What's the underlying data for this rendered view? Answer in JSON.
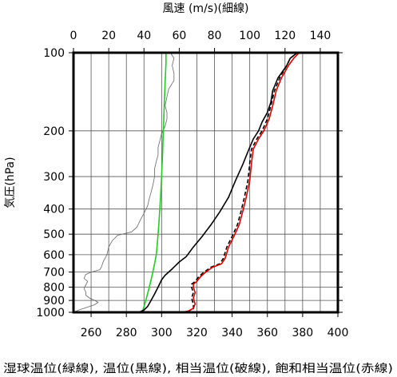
{
  "chart_data": {
    "type": "line",
    "title": "",
    "top_axis": {
      "label": "風速 (m/s)(細線)",
      "range": [
        0,
        150
      ],
      "ticks": [
        0,
        20,
        40,
        60,
        80,
        100,
        120,
        140
      ]
    },
    "x_axis": {
      "label": "湿球温位(緑線), 温位(黒線), 相当温位(破線), 飽和相当温位(赤線)",
      "range": [
        250,
        400
      ],
      "ticks": [
        260,
        280,
        300,
        320,
        340,
        360,
        380,
        400
      ]
    },
    "y_axis": {
      "label": "気圧(hPa)",
      "scale": "log",
      "range": [
        1000,
        100
      ],
      "ticks": [
        100,
        200,
        300,
        400,
        500,
        600,
        700,
        800,
        900,
        1000
      ]
    },
    "grid": true,
    "series": [
      {
        "name": "風速",
        "color": "#666666",
        "style": "thin",
        "axis": "top",
        "points": [
          [
            0,
            1000
          ],
          [
            3,
            980
          ],
          [
            8,
            955
          ],
          [
            12,
            935
          ],
          [
            14,
            915
          ],
          [
            12,
            900
          ],
          [
            9,
            880
          ],
          [
            7,
            860
          ],
          [
            7,
            835
          ],
          [
            6,
            810
          ],
          [
            7,
            785
          ],
          [
            8,
            760
          ],
          [
            6,
            740
          ],
          [
            7,
            715
          ],
          [
            10,
            700
          ],
          [
            15,
            685
          ],
          [
            16,
            665
          ],
          [
            17,
            635
          ],
          [
            19,
            600
          ],
          [
            20,
            560
          ],
          [
            22,
            530
          ],
          [
            25,
            505
          ],
          [
            33,
            490
          ],
          [
            36,
            470
          ],
          [
            38,
            440
          ],
          [
            40,
            415
          ],
          [
            42,
            390
          ],
          [
            43,
            365
          ],
          [
            44,
            345
          ],
          [
            45,
            325
          ],
          [
            46,
            300
          ],
          [
            46,
            280
          ],
          [
            47,
            262
          ],
          [
            48,
            248
          ],
          [
            48,
            232
          ],
          [
            49,
            218
          ],
          [
            50,
            205
          ],
          [
            52,
            192
          ],
          [
            53,
            180
          ],
          [
            53,
            170
          ],
          [
            52,
            160
          ],
          [
            53,
            148
          ],
          [
            54,
            138
          ],
          [
            57,
            128
          ],
          [
            57,
            120
          ],
          [
            56,
            112
          ],
          [
            57,
            105
          ],
          [
            55,
            100
          ]
        ]
      },
      {
        "name": "湿球温位",
        "color": "#22cc22",
        "style": "solid",
        "axis": "bottom",
        "points": [
          [
            289,
            1000
          ],
          [
            290,
            950
          ],
          [
            291,
            900
          ],
          [
            292,
            850
          ],
          [
            293,
            800
          ],
          [
            294,
            750
          ],
          [
            295,
            700
          ],
          [
            296,
            650
          ],
          [
            297,
            600
          ],
          [
            297.5,
            550
          ],
          [
            298,
            500
          ],
          [
            298.5,
            450
          ],
          [
            299,
            400
          ],
          [
            299.5,
            350
          ],
          [
            300,
            300
          ],
          [
            300.5,
            250
          ],
          [
            301,
            200
          ],
          [
            301.5,
            160
          ],
          [
            302,
            130
          ],
          [
            302.5,
            110
          ],
          [
            302.5,
            100
          ]
        ]
      },
      {
        "name": "温位",
        "color": "#000000",
        "style": "solid",
        "axis": "bottom",
        "points": [
          [
            287,
            1000
          ],
          [
            290,
            980
          ],
          [
            292,
            950
          ],
          [
            294,
            900
          ],
          [
            296,
            850
          ],
          [
            298,
            800
          ],
          [
            300,
            750
          ],
          [
            302,
            720
          ],
          [
            306,
            680
          ],
          [
            310,
            640
          ],
          [
            314,
            610
          ],
          [
            318,
            560
          ],
          [
            323,
            510
          ],
          [
            328,
            460
          ],
          [
            333,
            410
          ],
          [
            338,
            360
          ],
          [
            342,
            310
          ],
          [
            346,
            270
          ],
          [
            349,
            240
          ],
          [
            352,
            215
          ],
          [
            355,
            200
          ],
          [
            357,
            185
          ],
          [
            360,
            170
          ],
          [
            362,
            155
          ],
          [
            363,
            140
          ],
          [
            366,
            125
          ],
          [
            371,
            112
          ],
          [
            373,
            105
          ],
          [
            377,
            100
          ]
        ]
      },
      {
        "name": "相当温位",
        "color": "#000000",
        "style": "dashed",
        "axis": "bottom",
        "points": [
          [
            311,
            1000
          ],
          [
            315,
            990
          ],
          [
            318,
            970
          ],
          [
            318,
            930
          ],
          [
            317,
            880
          ],
          [
            318,
            840
          ],
          [
            317,
            800
          ],
          [
            317,
            780
          ],
          [
            319,
            760
          ],
          [
            321,
            730
          ],
          [
            324,
            700
          ],
          [
            328,
            670
          ],
          [
            333,
            650
          ],
          [
            335,
            620
          ],
          [
            337,
            560
          ],
          [
            340,
            510
          ],
          [
            343,
            460
          ],
          [
            345,
            410
          ],
          [
            347,
            360
          ],
          [
            349,
            310
          ],
          [
            350,
            265
          ],
          [
            351,
            235
          ],
          [
            354,
            215
          ],
          [
            357,
            200
          ],
          [
            360,
            180
          ],
          [
            362,
            160
          ],
          [
            364,
            140
          ],
          [
            367,
            125
          ],
          [
            371,
            112
          ],
          [
            373,
            105
          ],
          [
            377,
            100
          ]
        ]
      },
      {
        "name": "飽和相当温位",
        "color": "#dd0000",
        "style": "solid",
        "axis": "bottom",
        "points": [
          [
            311,
            1000
          ],
          [
            315,
            990
          ],
          [
            318,
            965
          ],
          [
            319,
            930
          ],
          [
            318,
            880
          ],
          [
            319,
            840
          ],
          [
            318,
            800
          ],
          [
            318,
            780
          ],
          [
            320,
            760
          ],
          [
            322,
            730
          ],
          [
            325,
            700
          ],
          [
            329,
            670
          ],
          [
            334,
            650
          ],
          [
            336,
            620
          ],
          [
            338,
            560
          ],
          [
            341,
            510
          ],
          [
            344,
            460
          ],
          [
            346,
            410
          ],
          [
            348,
            360
          ],
          [
            350,
            310
          ],
          [
            351,
            265
          ],
          [
            352,
            235
          ],
          [
            355,
            215
          ],
          [
            358,
            200
          ],
          [
            361,
            180
          ],
          [
            363,
            160
          ],
          [
            365,
            140
          ],
          [
            368,
            125
          ],
          [
            372,
            112
          ],
          [
            375,
            105
          ],
          [
            378,
            100
          ]
        ]
      }
    ]
  }
}
